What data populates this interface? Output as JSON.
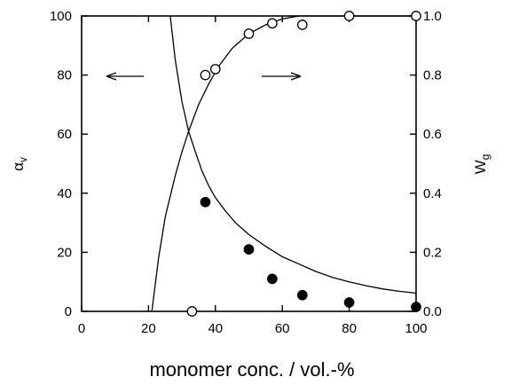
{
  "chart_data": {
    "type": "scatter",
    "title": "",
    "xlabel": "monomer conc. / vol.-%",
    "ylabel_left": "α_v",
    "ylabel_right": "W_g",
    "xlim": [
      0,
      100
    ],
    "ylim_left": [
      0,
      100
    ],
    "ylim_right": [
      0,
      1.0
    ],
    "x_ticks": [
      "0",
      "20",
      "40",
      "60",
      "80",
      "100"
    ],
    "y_left_ticks": [
      "0",
      "20",
      "40",
      "60",
      "80",
      "100"
    ],
    "y_right_ticks": [
      "0.0",
      "0.2",
      "0.4",
      "0.6",
      "0.8",
      "1.0"
    ],
    "grid": false,
    "series": [
      {
        "marker": "filled-circle",
        "axis": "left",
        "x": [
          37,
          50,
          57,
          66,
          80,
          100
        ],
        "y": [
          37,
          21,
          11,
          5.5,
          3,
          1.5
        ]
      },
      {
        "marker": "open-circle",
        "axis": "right",
        "x": [
          33,
          37,
          40,
          50,
          57,
          66,
          80,
          100
        ],
        "y": [
          0.0,
          0.8,
          0.82,
          0.94,
          0.975,
          0.97,
          1.0,
          1.0
        ]
      }
    ],
    "curves": [
      {
        "axis": "left",
        "points": [
          [
            26.5,
            100
          ],
          [
            28,
            85
          ],
          [
            30,
            71
          ],
          [
            32,
            61
          ],
          [
            34,
            54
          ],
          [
            36,
            47.5
          ],
          [
            38,
            42.5
          ],
          [
            40,
            38.5
          ],
          [
            43,
            34
          ],
          [
            46,
            30
          ],
          [
            50,
            26
          ],
          [
            55,
            22
          ],
          [
            60,
            18.5
          ],
          [
            65,
            16
          ],
          [
            70,
            13.5
          ],
          [
            75,
            11.5
          ],
          [
            80,
            10
          ],
          [
            85,
            8.7
          ],
          [
            90,
            7.6
          ],
          [
            95,
            6.8
          ],
          [
            100,
            6.2
          ]
        ]
      },
      {
        "axis": "right",
        "points": [
          [
            21,
            0.0
          ],
          [
            23,
            0.18
          ],
          [
            25,
            0.32
          ],
          [
            28,
            0.46
          ],
          [
            30,
            0.54
          ],
          [
            32,
            0.61
          ],
          [
            35,
            0.7
          ],
          [
            38,
            0.77
          ],
          [
            41,
            0.83
          ],
          [
            45,
            0.89
          ],
          [
            50,
            0.94
          ],
          [
            55,
            0.97
          ],
          [
            60,
            0.99
          ],
          [
            65,
            1.0
          ],
          [
            70,
            1.0
          ],
          [
            80,
            1.0
          ],
          [
            90,
            1.0
          ],
          [
            100,
            1.0
          ]
        ]
      }
    ],
    "annotations": [
      {
        "type": "arrow",
        "direction": "left",
        "meaning": "left axis"
      },
      {
        "type": "arrow",
        "direction": "right",
        "meaning": "right axis"
      }
    ]
  }
}
